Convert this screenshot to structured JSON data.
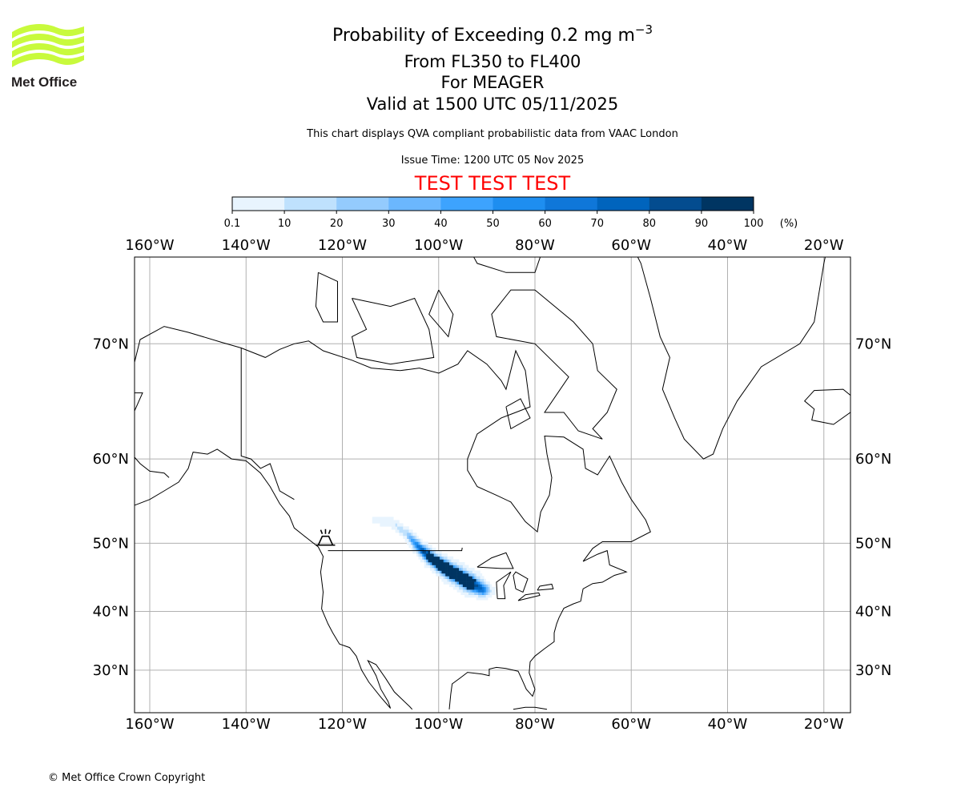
{
  "header": {
    "logo_text": "Met Office",
    "title_main": "Probability of Exceeding 0.2 mg m",
    "title_superscript": "−3",
    "line2": "From FL350 to FL400",
    "line3": "For MEAGER",
    "line4": "Valid at 1500 UTC 05/11/2025",
    "description": "This chart displays QVA compliant probabilistic data from VAAC London",
    "issue_time": "Issue Time: 1200 UTC 05 Nov 2025",
    "test_banner": "TEST TEST TEST",
    "test_color": "#ff0000"
  },
  "footer": {
    "copyright": "© Met Office Crown Copyright"
  },
  "chart_data": {
    "type": "heatmap",
    "title": "Probability of Exceeding 0.2 mg m−3",
    "projection": "mercator",
    "extent": {
      "lon": [
        -163.2,
        -14.5
      ],
      "lat": [
        22.7,
        76.8
      ]
    },
    "grid": true,
    "lon_ticks": [
      -160,
      -140,
      -120,
      -100,
      -80,
      -60,
      -40,
      -20
    ],
    "lon_tick_labels": [
      "160°W",
      "140°W",
      "120°W",
      "100°W",
      "80°W",
      "60°W",
      "40°W",
      "20°W"
    ],
    "lat_ticks": [
      30,
      40,
      50,
      60,
      70
    ],
    "lat_tick_labels": [
      "30°N",
      "40°N",
      "50°N",
      "60°N",
      "70°N"
    ],
    "colorbar": {
      "position": "top",
      "unit_label": "(%)",
      "boundaries": [
        "0.1",
        "10",
        "20",
        "30",
        "40",
        "50",
        "60",
        "70",
        "80",
        "90",
        "100"
      ],
      "colors": [
        "#e8f4fe",
        "#bfe1fd",
        "#94cbfd",
        "#6bb7fe",
        "#3da3fe",
        "#1e8ef0",
        "#0f77d9",
        "#0064bd",
        "#034c8f",
        "#003562"
      ]
    },
    "volcano": {
      "name": "MEAGER",
      "lon": -123.5,
      "lat": 50.6
    },
    "plume_axis": [
      {
        "lon": -113.5,
        "lat": 53.0,
        "peak": 4,
        "halfwidth": 0.5
      },
      {
        "lon": -109.5,
        "lat": 52.6,
        "peak": 8,
        "halfwidth": 0.6
      },
      {
        "lon": -106.5,
        "lat": 51.2,
        "peak": 20,
        "halfwidth": 0.6
      },
      {
        "lon": -104.3,
        "lat": 49.6,
        "peak": 70,
        "halfwidth": 0.7
      },
      {
        "lon": -101.5,
        "lat": 47.9,
        "peak": 100,
        "halfwidth": 0.9
      },
      {
        "lon": -97.5,
        "lat": 46.1,
        "peak": 100,
        "halfwidth": 1.2
      },
      {
        "lon": -93.5,
        "lat": 44.4,
        "peak": 100,
        "halfwidth": 1.3
      },
      {
        "lon": -90.8,
        "lat": 43.4,
        "peak": 70,
        "halfwidth": 1.1
      },
      {
        "lon": -89.0,
        "lat": 43.2,
        "peak": 5,
        "halfwidth": 0.8
      }
    ]
  }
}
